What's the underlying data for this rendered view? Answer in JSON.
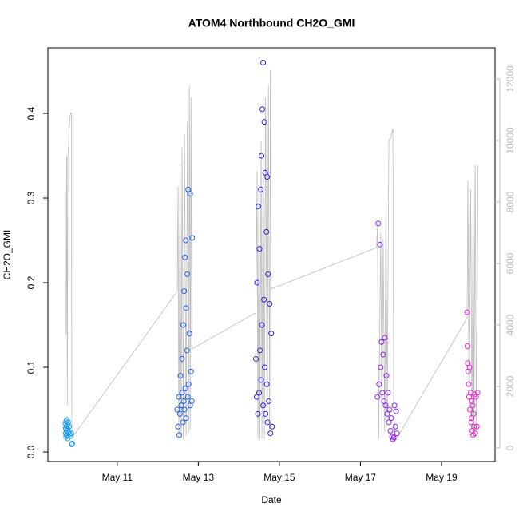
{
  "chart_data": {
    "type": "scatter",
    "title": "ATOM4 Northbound CH2O_GMI",
    "x_label": "Date",
    "y_label": "CH2O_GMI",
    "xlim": [
      9.29,
      20.32
    ],
    "xticks": [
      {
        "value": 11,
        "label": "May 11"
      },
      {
        "value": 13,
        "label": "May 13"
      },
      {
        "value": 15,
        "label": "May 15"
      },
      {
        "value": 17,
        "label": "May 17"
      },
      {
        "value": 19,
        "label": "May 19"
      }
    ],
    "ylim": [
      -0.0113,
      0.4774
    ],
    "yticks": [
      {
        "value": 0,
        "label": "0.0"
      },
      0.1,
      0.2,
      0.3,
      0.4
    ],
    "y2lim": [
      -442,
      13013
    ],
    "y2ticks": [
      0,
      2000,
      4000,
      6000,
      8000,
      10000,
      12000
    ],
    "y2_color": "#bbbbbb",
    "series": [
      {
        "type": "line",
        "axis": "y2",
        "color": "#bbbbbb",
        "x": [
          9.74,
          9.75,
          9.77,
          9.78,
          9.8,
          9.81,
          9.83,
          9.85,
          9.87,
          9.88,
          9.9,
          9.92,
          12.48,
          12.5,
          12.52,
          12.55,
          12.58,
          12.6,
          12.63,
          12.66,
          12.7,
          12.73,
          12.76,
          12.78,
          12.8,
          12.82,
          12.84,
          14.42,
          14.45,
          14.47,
          14.5,
          14.52,
          14.55,
          14.57,
          14.6,
          14.63,
          14.66,
          14.7,
          14.73,
          14.76,
          14.78,
          14.8,
          17.4,
          17.42,
          17.45,
          17.5,
          17.53,
          17.56,
          17.6,
          17.63,
          17.66,
          17.7,
          17.75,
          17.8,
          17.82,
          17.86,
          19.63,
          19.65,
          19.68,
          19.72,
          19.75,
          19.78,
          19.8,
          19.83,
          19.86,
          19.9
        ],
        "values": [
          3700,
          9500,
          1400,
          9400,
          9800,
          10300,
          10700,
          10900,
          10900,
          500,
          500,
          400,
          5090,
          8500,
          300,
          9200,
          300,
          9800,
          300,
          10200,
          400,
          10600,
          500,
          11800,
          600,
          11400,
          3220,
          4400,
          9000,
          300,
          9500,
          300,
          10000,
          300,
          10800,
          300,
          11400,
          400,
          11800,
          500,
          12300,
          5170,
          6520,
          7300,
          300,
          7000,
          300,
          6800,
          500,
          8000,
          1000,
          10000,
          10100,
          10400,
          1500,
          230,
          4230,
          8700,
          500,
          8400,
          400,
          9000,
          500,
          9200,
          600,
          9200
        ]
      },
      {
        "type": "scatter",
        "color": "#1e9be8",
        "x": [
          9.72,
          9.73,
          9.73,
          9.74,
          9.74,
          9.75,
          9.75,
          9.76,
          9.76,
          9.77,
          9.78,
          9.78,
          9.79,
          9.8,
          9.81,
          9.82,
          9.85,
          9.87,
          9.88,
          9.89
        ],
        "values": [
          0.034,
          0.028,
          0.022,
          0.036,
          0.018,
          0.03,
          0.025,
          0.038,
          0.02,
          0.032,
          0.027,
          0.016,
          0.035,
          0.023,
          0.03,
          0.021,
          0.019,
          0.022,
          0.009,
          0.01
        ]
      },
      {
        "type": "scatter",
        "color": "#1f5ff0",
        "x": [
          12.48,
          12.5,
          12.52,
          12.53,
          12.55,
          12.56,
          12.58,
          12.6,
          12.6,
          12.62,
          12.63,
          12.64,
          12.65,
          12.66,
          12.67,
          12.68,
          12.69,
          12.7,
          12.7,
          12.72,
          12.73,
          12.74,
          12.75,
          12.76,
          12.78,
          12.8,
          12.8,
          12.82,
          12.84,
          12.85
        ],
        "values": [
          0.05,
          0.03,
          0.065,
          0.02,
          0.045,
          0.09,
          0.055,
          0.07,
          0.11,
          0.035,
          0.15,
          0.06,
          0.19,
          0.05,
          0.23,
          0.075,
          0.25,
          0.04,
          0.17,
          0.12,
          0.21,
          0.065,
          0.31,
          0.08,
          0.14,
          0.055,
          0.305,
          0.095,
          0.06,
          0.253
        ]
      },
      {
        "type": "scatter",
        "color": "#2a1fe6",
        "x": [
          14.42,
          14.44,
          14.45,
          14.47,
          14.48,
          14.5,
          14.51,
          14.52,
          14.54,
          14.55,
          14.56,
          14.57,
          14.58,
          14.6,
          14.6,
          14.62,
          14.63,
          14.64,
          14.65,
          14.66,
          14.68,
          14.69,
          14.7,
          14.71,
          14.72,
          14.74,
          14.76,
          14.78,
          14.8,
          14.82
        ],
        "values": [
          0.11,
          0.065,
          0.2,
          0.045,
          0.29,
          0.07,
          0.24,
          0.12,
          0.31,
          0.085,
          0.35,
          0.15,
          0.405,
          0.055,
          0.46,
          0.18,
          0.39,
          0.1,
          0.33,
          0.045,
          0.26,
          0.08,
          0.325,
          0.035,
          0.21,
          0.06,
          0.175,
          0.022,
          0.14,
          0.03
        ]
      },
      {
        "type": "scatter",
        "color": "#8c1ff0",
        "x": [
          17.42,
          17.44,
          17.46,
          17.48,
          17.5,
          17.52,
          17.54,
          17.56,
          17.58,
          17.6,
          17.62,
          17.64,
          17.66,
          17.68,
          17.7,
          17.72,
          17.74,
          17.76,
          17.78,
          17.8,
          17.82,
          17.84,
          17.86,
          17.88,
          17.9
        ],
        "values": [
          0.065,
          0.27,
          0.08,
          0.245,
          0.1,
          0.13,
          0.07,
          0.115,
          0.06,
          0.135,
          0.055,
          0.09,
          0.045,
          0.07,
          0.035,
          0.05,
          0.025,
          0.04,
          0.018,
          0.015,
          0.017,
          0.055,
          0.03,
          0.048,
          0.022
        ]
      },
      {
        "type": "scatter",
        "color": "#f01fd8",
        "x": [
          19.63,
          19.64,
          19.65,
          19.66,
          19.67,
          19.68,
          19.69,
          19.7,
          19.72,
          19.73,
          19.74,
          19.75,
          19.76,
          19.77,
          19.78,
          19.79,
          19.8,
          19.82,
          19.83,
          19.85,
          19.87,
          19.89
        ],
        "values": [
          0.165,
          0.125,
          0.105,
          0.095,
          0.08,
          0.065,
          0.1,
          0.05,
          0.07,
          0.035,
          0.04,
          0.06,
          0.025,
          0.055,
          0.02,
          0.045,
          0.03,
          0.068,
          0.022,
          0.065,
          0.03,
          0.07
        ]
      }
    ]
  }
}
